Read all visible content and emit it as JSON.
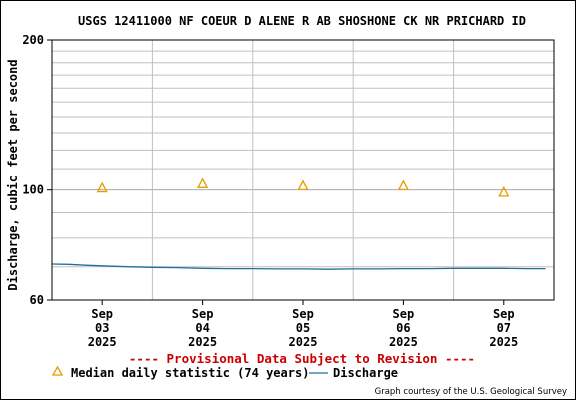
{
  "chart_data": {
    "type": "line",
    "title": "USGS 12411000 NF COEUR D ALENE R AB SHOSHONE CK NR PRICHARD ID",
    "ylabel": "Discharge, cubic feet per second",
    "xlabel": "",
    "y_scale": "log",
    "ylim": [
      60,
      200
    ],
    "y_ticks": [
      60,
      100,
      200
    ],
    "y_tick_labels": [
      "60",
      "100",
      "200"
    ],
    "xlim": [
      "2025-09-02T12:00",
      "2025-09-07T12:00"
    ],
    "x_ticks": [
      {
        "value": "2025-09-03",
        "lines": [
          "Sep",
          "03",
          "2025"
        ]
      },
      {
        "value": "2025-09-04",
        "lines": [
          "Sep",
          "04",
          "2025"
        ]
      },
      {
        "value": "2025-09-05",
        "lines": [
          "Sep",
          "05",
          "2025"
        ]
      },
      {
        "value": "2025-09-06",
        "lines": [
          "Sep",
          "06",
          "2025"
        ]
      },
      {
        "value": "2025-09-07",
        "lines": [
          "Sep",
          "07",
          "2025"
        ]
      }
    ],
    "grid": true,
    "series": [
      {
        "name": "Median daily statistic (74 years)",
        "marker": "triangle",
        "color": "#e69c00",
        "points": [
          {
            "x": "2025-09-03",
            "y": 101
          },
          {
            "x": "2025-09-04",
            "y": 103
          },
          {
            "x": "2025-09-05",
            "y": 102
          },
          {
            "x": "2025-09-06",
            "y": 102
          },
          {
            "x": "2025-09-07",
            "y": 99
          }
        ]
      },
      {
        "name": "Discharge",
        "color": "#1f6fa0",
        "points": [
          {
            "x": "2025-09-02T12:00",
            "y": 70.9
          },
          {
            "x": "2025-09-02T16:00",
            "y": 70.8
          },
          {
            "x": "2025-09-02T20:00",
            "y": 70.5
          },
          {
            "x": "2025-09-03T00:00",
            "y": 70.3
          },
          {
            "x": "2025-09-03T06:00",
            "y": 70.0
          },
          {
            "x": "2025-09-03T12:00",
            "y": 69.8
          },
          {
            "x": "2025-09-03T18:00",
            "y": 69.7
          },
          {
            "x": "2025-09-04T00:00",
            "y": 69.5
          },
          {
            "x": "2025-09-04T06:00",
            "y": 69.4
          },
          {
            "x": "2025-09-04T12:00",
            "y": 69.4
          },
          {
            "x": "2025-09-04T18:00",
            "y": 69.3
          },
          {
            "x": "2025-09-05T00:00",
            "y": 69.3
          },
          {
            "x": "2025-09-05T06:00",
            "y": 69.2
          },
          {
            "x": "2025-09-05T12:00",
            "y": 69.3
          },
          {
            "x": "2025-09-05T18:00",
            "y": 69.3
          },
          {
            "x": "2025-09-06T00:00",
            "y": 69.4
          },
          {
            "x": "2025-09-06T06:00",
            "y": 69.4
          },
          {
            "x": "2025-09-06T12:00",
            "y": 69.5
          },
          {
            "x": "2025-09-06T18:00",
            "y": 69.5
          },
          {
            "x": "2025-09-07T00:00",
            "y": 69.5
          },
          {
            "x": "2025-09-07T06:00",
            "y": 69.4
          },
          {
            "x": "2025-09-07T10:00",
            "y": 69.4
          }
        ]
      }
    ]
  },
  "notice": "---- Provisional Data Subject to Revision ----",
  "legend": {
    "median_label": "Median daily statistic (74 years)",
    "discharge_label": "Discharge"
  },
  "credit": "Graph courtesy of the U.S. Geological Survey",
  "colors": {
    "notice": "#cc0000",
    "grid": "#c0c0c0",
    "frame": "#000000"
  }
}
